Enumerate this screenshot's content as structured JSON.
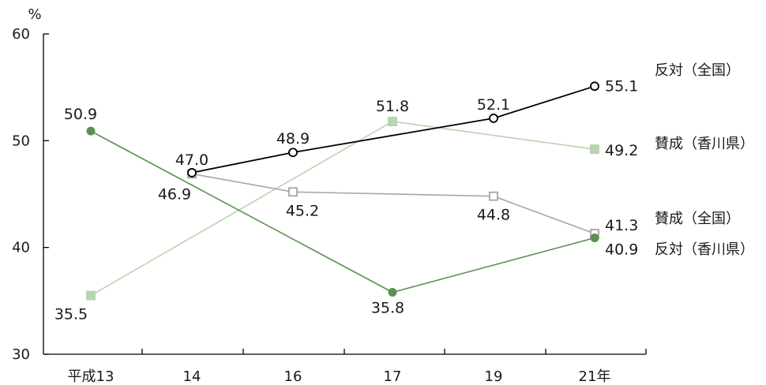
{
  "chart_data": {
    "type": "line",
    "ylabel": "%",
    "ylim": [
      30,
      60
    ],
    "yticks": [
      "30",
      "40",
      "50",
      "60"
    ],
    "categories": [
      "平成13",
      "14",
      "16",
      "17",
      "19",
      "21年"
    ],
    "legend_placement": "right",
    "grid": false,
    "series": [
      {
        "name": "反対（全国）",
        "color": "#000000",
        "marker": "circle-open",
        "values": [
          null,
          47.0,
          48.9,
          null,
          52.1,
          55.1
        ],
        "labels": [
          "",
          "47.0",
          "48.9",
          "",
          "52.1",
          "55.1"
        ]
      },
      {
        "name": "賛成（香川県）",
        "color": "#b9d4b0",
        "marker": "square-filled",
        "values": [
          35.5,
          null,
          null,
          51.8,
          null,
          49.2
        ],
        "labels": [
          "35.5",
          "",
          "",
          "51.8",
          "",
          "49.2"
        ]
      },
      {
        "name": "賛成（全国）",
        "color": "#a6a6a6",
        "marker": "square-open",
        "values": [
          null,
          46.9,
          45.2,
          null,
          44.8,
          41.3
        ],
        "labels": [
          "",
          "46.9",
          "45.2",
          "",
          "44.8",
          "41.3"
        ]
      },
      {
        "name": "反対（香川県）",
        "color": "#5a9150",
        "marker": "circle-filled",
        "values": [
          50.9,
          null,
          null,
          35.8,
          null,
          40.9
        ],
        "labels": [
          "50.9",
          "",
          "",
          "35.8",
          "",
          "40.9"
        ]
      }
    ]
  }
}
